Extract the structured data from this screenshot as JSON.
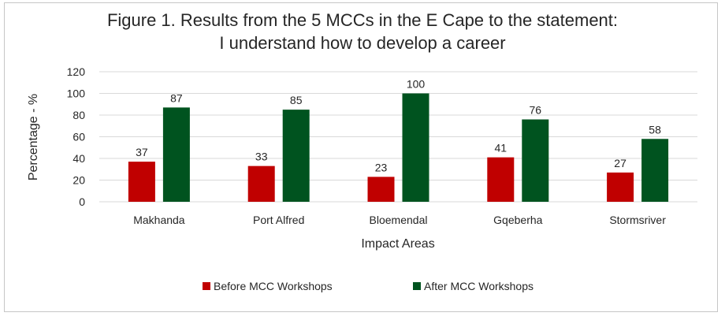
{
  "chart_data": {
    "type": "bar",
    "title_line1": "Figure 1. Results from the 5 MCCs in the E Cape to the statement:",
    "title_line2": "I understand how to develop a career",
    "xlabel": "Impact Areas",
    "ylabel": "Percentage - %",
    "categories": [
      "Makhanda",
      "Port Alfred",
      "Bloemendal",
      "Gqeberha",
      "Stormsriver"
    ],
    "ylim": [
      0,
      120
    ],
    "yticks": [
      "0",
      "20",
      "40",
      "60",
      "80",
      "100",
      "120"
    ],
    "grid": true,
    "legend_position": "bottom",
    "series": [
      {
        "name": "Before MCC Workshops",
        "color": "#c00000",
        "values": [
          37,
          33,
          23,
          41,
          27
        ]
      },
      {
        "name": "After MCC Workshops",
        "color": "#00531f",
        "values": [
          87,
          85,
          100,
          76,
          58
        ]
      }
    ]
  }
}
